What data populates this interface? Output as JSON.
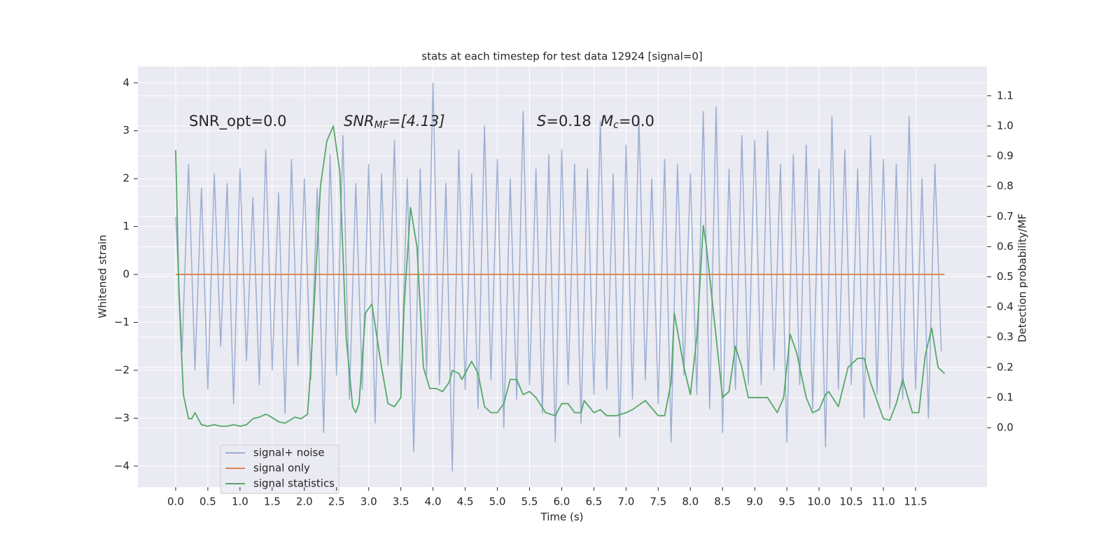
{
  "chart_data": {
    "type": "line",
    "title": "stats at each timestep for test data 12924 [signal=0]",
    "xlabel": "Time (s)",
    "ylabel": "Whitened strain",
    "y2label": "Detection probability/MF",
    "annotations": {
      "snr_opt": "SNR_opt=0.0",
      "snr_mf": [
        "SNR",
        "MF",
        "=[4.13]"
      ],
      "s": [
        "S",
        "=0.18"
      ],
      "mc": [
        "M",
        "c",
        "=0.0"
      ]
    },
    "xlim": [
      -0.587,
      12.61
    ],
    "ylim": [
      -4.44,
      4.34
    ],
    "y2lim": [
      -0.197,
      1.197
    ],
    "grid": true,
    "legend": "lower left",
    "xticks": [
      {
        "value": 0,
        "label": "0.0"
      },
      {
        "value": 0.5,
        "label": "0.5"
      },
      {
        "value": 1,
        "label": "1.0"
      },
      {
        "value": 1.5,
        "label": "1.5"
      },
      {
        "value": 2,
        "label": "2.0"
      },
      {
        "value": 2.5,
        "label": "2.5"
      },
      {
        "value": 3,
        "label": "3.0"
      },
      {
        "value": 3.5,
        "label": "3.5"
      },
      {
        "value": 4,
        "label": "4.0"
      },
      {
        "value": 4.5,
        "label": "4.5"
      },
      {
        "value": 5,
        "label": "5.0"
      },
      {
        "value": 5.5,
        "label": "5.5"
      },
      {
        "value": 6,
        "label": "6.0"
      },
      {
        "value": 6.5,
        "label": "6.5"
      },
      {
        "value": 7,
        "label": "7.0"
      },
      {
        "value": 7.5,
        "label": "7.5"
      },
      {
        "value": 8,
        "label": "8.0"
      },
      {
        "value": 8.5,
        "label": "8.5"
      },
      {
        "value": 9,
        "label": "9.0"
      },
      {
        "value": 9.5,
        "label": "9.5"
      },
      {
        "value": 10,
        "label": "10.0"
      },
      {
        "value": 10.5,
        "label": "10.5"
      },
      {
        "value": 11,
        "label": "11.0"
      },
      {
        "value": 11.5,
        "label": "11.5"
      }
    ],
    "yticks": [
      {
        "value": -4,
        "label": "−4"
      },
      {
        "value": -3,
        "label": "−3"
      },
      {
        "value": -2,
        "label": "−2"
      },
      {
        "value": -1,
        "label": "−1"
      },
      0,
      1,
      2,
      3,
      4
    ],
    "y2ticks": [
      {
        "value": 0,
        "label": "0.0"
      },
      {
        "value": 0.1,
        "label": "0.1"
      },
      {
        "value": 0.2,
        "label": "0.2"
      },
      {
        "value": 0.3,
        "label": "0.3"
      },
      {
        "value": 0.4,
        "label": "0.4"
      },
      {
        "value": 0.5,
        "label": "0.5"
      },
      {
        "value": 0.6,
        "label": "0.6"
      },
      {
        "value": 0.7,
        "label": "0.7"
      },
      {
        "value": 0.8,
        "label": "0.8"
      },
      {
        "value": 0.9,
        "label": "0.9"
      },
      {
        "value": 1,
        "label": "1.0"
      },
      {
        "value": 1.1,
        "label": "1.1"
      }
    ],
    "series": [
      {
        "name": "signal+ noise",
        "color": "rgba(76,114,176,0.5)",
        "x": [
          0.0,
          0.1,
          0.2,
          0.3,
          0.4,
          0.5,
          0.6,
          0.7,
          0.8,
          0.9,
          1.0,
          1.1,
          1.2,
          1.3,
          1.4,
          1.5,
          1.6,
          1.7,
          1.8,
          1.9,
          2.0,
          2.1,
          2.2,
          2.3,
          2.4,
          2.5,
          2.6,
          2.7,
          2.8,
          2.9,
          3.0,
          3.1,
          3.2,
          3.3,
          3.4,
          3.5,
          3.6,
          3.7,
          3.8,
          3.9,
          4.0,
          4.1,
          4.2,
          4.3,
          4.4,
          4.5,
          4.6,
          4.7,
          4.8,
          4.9,
          5.0,
          5.1,
          5.2,
          5.3,
          5.4,
          5.5,
          5.6,
          5.7,
          5.8,
          5.9,
          6.0,
          6.1,
          6.2,
          6.3,
          6.4,
          6.5,
          6.6,
          6.7,
          6.8,
          6.9,
          7.0,
          7.1,
          7.2,
          7.3,
          7.4,
          7.5,
          7.6,
          7.7,
          7.8,
          7.9,
          8.0,
          8.1,
          8.2,
          8.3,
          8.4,
          8.5,
          8.6,
          8.7,
          8.8,
          8.9,
          9.0,
          9.1,
          9.2,
          9.3,
          9.4,
          9.5,
          9.6,
          9.7,
          9.8,
          9.9,
          10.0,
          10.1,
          10.2,
          10.3,
          10.4,
          10.5,
          10.6,
          10.7,
          10.8,
          10.9,
          11.0,
          11.1,
          11.2,
          11.3,
          11.4,
          11.5,
          11.6,
          11.7,
          11.8,
          11.9
        ],
        "values": [
          1.2,
          -1.6,
          2.3,
          -2.0,
          1.8,
          -2.4,
          2.1,
          -1.5,
          1.9,
          -2.7,
          2.2,
          -1.8,
          1.6,
          -2.3,
          2.6,
          -2.0,
          1.7,
          -2.9,
          2.4,
          -1.9,
          2.0,
          -2.2,
          1.8,
          -3.3,
          2.5,
          -2.1,
          2.9,
          -2.6,
          1.9,
          -2.4,
          2.3,
          -3.1,
          2.1,
          -1.9,
          2.8,
          -2.5,
          2.0,
          -3.7,
          2.2,
          -2.1,
          4.0,
          -2.3,
          1.9,
          -4.1,
          2.6,
          -2.4,
          2.1,
          -2.8,
          3.1,
          -2.2,
          2.4,
          -3.2,
          2.0,
          -2.6,
          3.4,
          -2.3,
          2.2,
          -2.9,
          2.5,
          -3.5,
          2.6,
          -2.3,
          2.3,
          -3.1,
          2.2,
          -2.5,
          3.2,
          -2.4,
          2.1,
          -3.4,
          2.7,
          -2.6,
          3.3,
          -2.2,
          2.0,
          -2.7,
          2.4,
          -3.5,
          2.3,
          -2.1,
          2.1,
          -2.5,
          3.4,
          -2.8,
          3.5,
          -3.3,
          2.2,
          -2.4,
          2.9,
          -2.3,
          2.8,
          -2.3,
          3.0,
          -2.0,
          2.3,
          -3.5,
          2.5,
          -2.3,
          2.7,
          -2.8,
          2.2,
          -3.6,
          3.3,
          -2.4,
          2.6,
          -2.3,
          2.2,
          -3.0,
          2.9,
          -2.5,
          2.4,
          -2.8,
          2.3,
          -2.6,
          3.3,
          -2.4,
          2.0,
          -3.0,
          2.3,
          -1.6
        ]
      },
      {
        "name": "signal only",
        "color": "#dd8452",
        "x": [
          0.0,
          11.95
        ],
        "values": [
          0,
          0
        ]
      },
      {
        "name": "signal statistics",
        "color": "#55a868",
        "axis": "y2",
        "x": [
          0.0,
          0.05,
          0.12,
          0.2,
          0.25,
          0.3,
          0.35,
          0.4,
          0.5,
          0.6,
          0.7,
          0.8,
          0.9,
          1.0,
          1.1,
          1.2,
          1.3,
          1.4,
          1.45,
          1.6,
          1.7,
          1.85,
          1.95,
          2.05,
          2.1,
          2.25,
          2.35,
          2.45,
          2.55,
          2.65,
          2.75,
          2.8,
          2.85,
          2.95,
          3.05,
          3.2,
          3.3,
          3.4,
          3.5,
          3.55,
          3.65,
          3.75,
          3.85,
          3.95,
          4.05,
          4.15,
          4.25,
          4.3,
          4.4,
          4.45,
          4.55,
          4.6,
          4.7,
          4.8,
          4.9,
          5.0,
          5.1,
          5.2,
          5.3,
          5.4,
          5.5,
          5.6,
          5.75,
          5.9,
          6.0,
          6.1,
          6.2,
          6.3,
          6.35,
          6.5,
          6.6,
          6.7,
          6.85,
          7.0,
          7.1,
          7.3,
          7.5,
          7.6,
          7.7,
          7.75,
          7.9,
          8.0,
          8.1,
          8.2,
          8.25,
          8.4,
          8.5,
          8.6,
          8.7,
          8.8,
          8.9,
          9.0,
          9.2,
          9.35,
          9.45,
          9.55,
          9.65,
          9.8,
          9.9,
          10.0,
          10.1,
          10.15,
          10.3,
          10.45,
          10.6,
          10.7,
          10.8,
          11.0,
          11.1,
          11.2,
          11.3,
          11.45,
          11.55,
          11.65,
          11.75,
          11.85,
          11.95
        ],
        "values": [
          0.92,
          0.45,
          0.11,
          0.03,
          0.03,
          0.05,
          0.03,
          0.01,
          0.005,
          0.01,
          0.005,
          0.005,
          0.01,
          0.005,
          0.01,
          0.03,
          0.035,
          0.045,
          0.04,
          0.02,
          0.015,
          0.035,
          0.03,
          0.045,
          0.2,
          0.8,
          0.95,
          1.0,
          0.85,
          0.3,
          0.07,
          0.05,
          0.08,
          0.38,
          0.41,
          0.2,
          0.08,
          0.07,
          0.1,
          0.4,
          0.73,
          0.6,
          0.2,
          0.13,
          0.13,
          0.12,
          0.15,
          0.19,
          0.18,
          0.16,
          0.2,
          0.22,
          0.18,
          0.07,
          0.05,
          0.05,
          0.08,
          0.16,
          0.16,
          0.11,
          0.12,
          0.1,
          0.05,
          0.04,
          0.08,
          0.08,
          0.05,
          0.05,
          0.09,
          0.05,
          0.06,
          0.04,
          0.04,
          0.05,
          0.06,
          0.09,
          0.04,
          0.04,
          0.15,
          0.38,
          0.2,
          0.11,
          0.3,
          0.67,
          0.6,
          0.3,
          0.1,
          0.12,
          0.27,
          0.2,
          0.1,
          0.1,
          0.1,
          0.05,
          0.1,
          0.31,
          0.25,
          0.1,
          0.05,
          0.06,
          0.11,
          0.12,
          0.07,
          0.2,
          0.23,
          0.23,
          0.15,
          0.03,
          0.025,
          0.08,
          0.16,
          0.05,
          0.05,
          0.24,
          0.33,
          0.2,
          0.18
        ]
      }
    ]
  }
}
